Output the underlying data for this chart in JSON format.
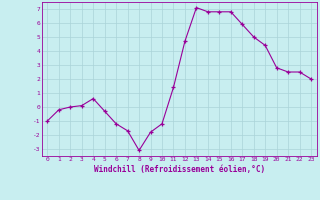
{
  "hours": [
    0,
    1,
    2,
    3,
    4,
    5,
    6,
    7,
    8,
    9,
    10,
    11,
    12,
    13,
    14,
    15,
    16,
    17,
    18,
    19,
    20,
    21,
    22,
    23
  ],
  "values": [
    -1.0,
    -0.2,
    0.0,
    0.1,
    0.6,
    -0.3,
    -1.2,
    -1.7,
    -3.1,
    -1.8,
    -1.2,
    1.4,
    4.7,
    7.1,
    6.8,
    6.8,
    6.8,
    5.9,
    5.0,
    4.4,
    2.8,
    2.5,
    2.5,
    2.0
  ],
  "line_color": "#990099",
  "marker_color": "#990099",
  "bg_color": "#c8eef0",
  "grid_color": "#aad4d8",
  "xlabel": "Windchill (Refroidissement éolien,°C)",
  "ylim": [
    -3.5,
    7.5
  ],
  "xlim": [
    -0.5,
    23.5
  ],
  "yticks": [
    -3,
    -2,
    -1,
    0,
    1,
    2,
    3,
    4,
    5,
    6,
    7
  ],
  "xticks": [
    0,
    1,
    2,
    3,
    4,
    5,
    6,
    7,
    8,
    9,
    10,
    11,
    12,
    13,
    14,
    15,
    16,
    17,
    18,
    19,
    20,
    21,
    22,
    23
  ],
  "tick_label_fontsize": 4.5,
  "xlabel_fontsize": 5.5,
  "line_width": 0.8,
  "marker_size": 3.0
}
